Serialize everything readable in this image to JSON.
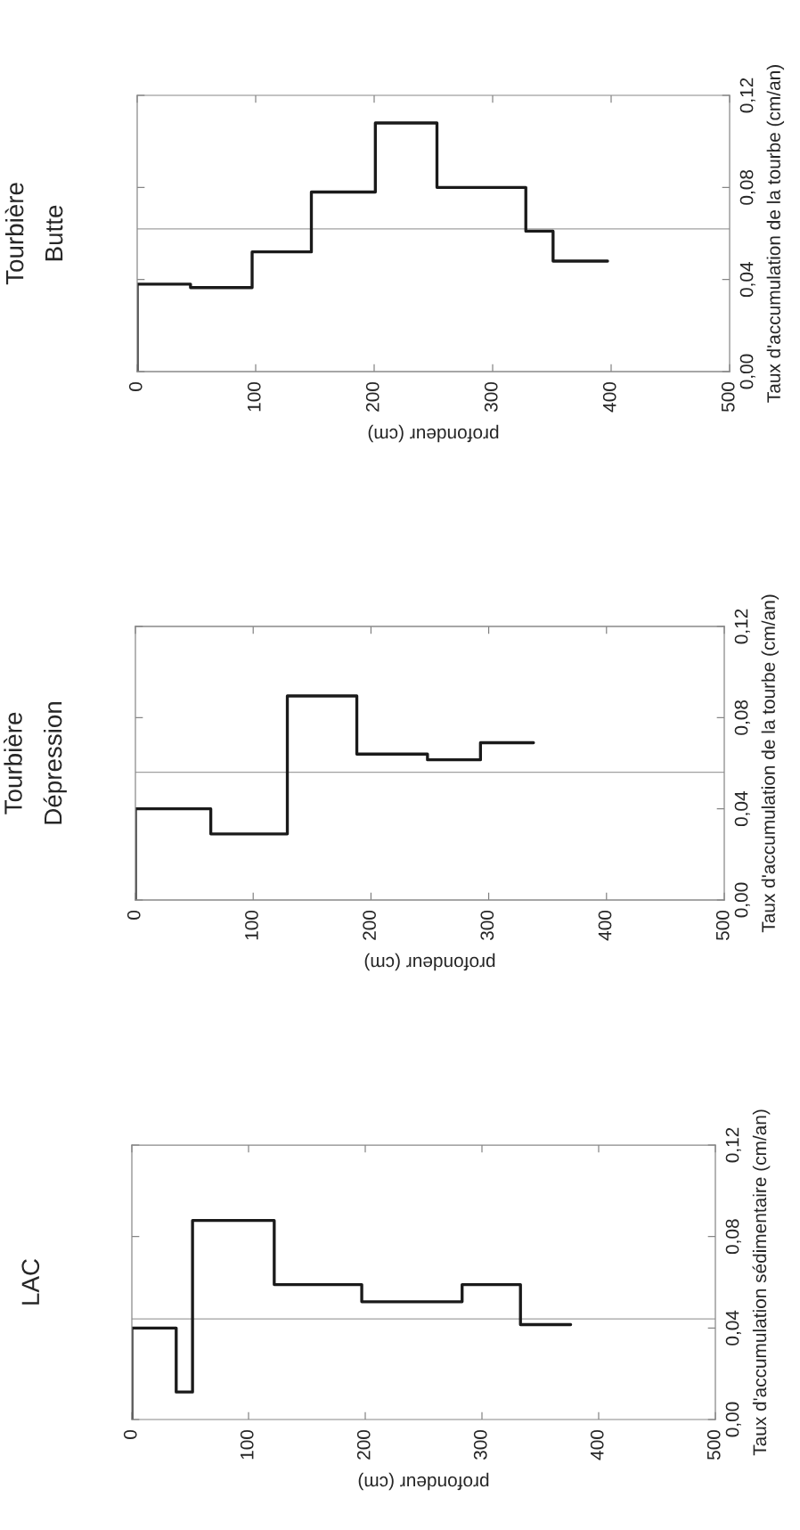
{
  "chart_data": [
    {
      "type": "step",
      "title": "Tourbière\nButte",
      "xlabel": "profondeur (cm)",
      "ylabel": "Taux d'accumulation de la tourbe (cm/an)",
      "x": [
        0,
        0,
        45,
        97,
        147,
        201,
        253,
        328,
        351,
        397
      ],
      "series": [
        {
          "color": "#1a1a1a",
          "values": [
            0,
            0.038,
            0.0365,
            0.052,
            0.078,
            0.108,
            0.08,
            0.061,
            0.048,
            0.048
          ]
        }
      ],
      "xlim": [
        0,
        500
      ],
      "xticks": [
        0,
        100,
        200,
        300,
        400,
        500
      ],
      "ylim": [
        0,
        0.12
      ],
      "yticks": [
        {
          "value": 0,
          "label": "0,00"
        },
        {
          "value": 0.04,
          "label": "0,04"
        },
        {
          "value": 0.08,
          "label": "0,08"
        },
        {
          "value": 0.12,
          "label": "0,12"
        }
      ],
      "ref_lines": [
        {
          "axis": "y",
          "value": 0.062,
          "color": "#a0a0a0"
        }
      ],
      "grid": false,
      "legend": false
    },
    {
      "type": "step",
      "title": "Tourbière\nDépression",
      "xlabel": "profondeur (cm)",
      "ylabel": "Taux d'accumulation de la tourbe (cm/an)",
      "x": [
        0,
        0,
        64,
        129,
        188,
        248,
        293,
        338
      ],
      "series": [
        {
          "color": "#1a1a1a",
          "values": [
            0,
            0.04,
            0.029,
            0.0895,
            0.064,
            0.0615,
            0.069,
            0.069
          ]
        }
      ],
      "xlim": [
        0,
        500
      ],
      "xticks": [
        0,
        100,
        200,
        300,
        400,
        500
      ],
      "ylim": [
        0,
        0.12
      ],
      "yticks": [
        {
          "value": 0,
          "label": "0,00"
        },
        {
          "value": 0.04,
          "label": "0,04"
        },
        {
          "value": 0.08,
          "label": "0,08"
        },
        {
          "value": 0.12,
          "label": "0,12"
        }
      ],
      "ref_lines": [
        {
          "axis": "y",
          "value": 0.056,
          "color": "#a0a0a0"
        }
      ],
      "grid": false,
      "legend": false
    },
    {
      "type": "step",
      "title": "LAC",
      "xlabel": "profondeur (cm)",
      "ylabel": "Taux d'accumulation sédimentaire (cm/an)",
      "x": [
        0,
        0,
        38,
        52,
        122,
        197,
        283,
        333,
        376
      ],
      "series": [
        {
          "color": "#1a1a1a",
          "values": [
            0,
            0.04,
            0.012,
            0.087,
            0.059,
            0.0515,
            0.059,
            0.0415,
            0.0415
          ]
        }
      ],
      "xlim": [
        0,
        500
      ],
      "xticks": [
        0,
        100,
        200,
        300,
        400,
        500
      ],
      "ylim": [
        0,
        0.12
      ],
      "yticks": [
        {
          "value": 0,
          "label": "0,00"
        },
        {
          "value": 0.04,
          "label": "0,04"
        },
        {
          "value": 0.08,
          "label": "0,08"
        },
        {
          "value": 0.12,
          "label": "0,12"
        }
      ],
      "ref_lines": [
        {
          "axis": "y",
          "value": 0.044,
          "color": "#a0a0a0"
        }
      ],
      "grid": false,
      "legend": false
    }
  ]
}
